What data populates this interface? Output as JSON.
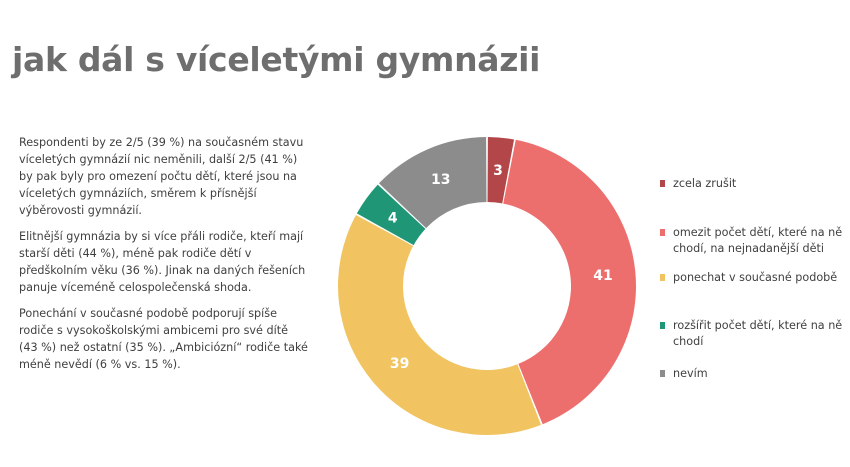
{
  "title": "jak dál s víceletými gymnázii",
  "paragraphs": [
    "Respondenti by ze 2/5 (39 %) na současném stavu víceletých gymnázií nic neměnili, další 2/5 (41 %) by pak byly pro omezení počtu dětí, které jsou na víceletých gymnáziích, směrem k přísnější výběrovosti gymnázií.",
    "Elitnější gymnázia by si více přáli rodiče, kteří mají starší děti (44 %), méně pak rodiče dětí v předškolním věku (36 %). Jinak na daných řešeních panuje víceméně celospolečenská shoda.",
    "Ponechání v současné podobě podporují spíše rodiče s vysokoškolskými ambicemi pro své dítě (43 %) než ostatní (35 %). „Ambiciózní“ rodiče také méně nevědí (6 % vs. 15 %)."
  ],
  "chart_data": {
    "type": "pie",
    "donut": true,
    "title": "",
    "categories": [
      "zcela zrušit",
      "omezit počet dětí, které na ně chodí, na nejnadanější děti",
      "ponechat v současné podobě",
      "rozšířit počet dětí, které na ně chodí",
      "nevím"
    ],
    "values": [
      3,
      41,
      39,
      4,
      13
    ],
    "data_labels": [
      "3",
      "41",
      "39",
      "4",
      "13"
    ],
    "colors": [
      "#b34649",
      "#ec6f6e",
      "#f1c461",
      "#1f9777",
      "#8c8c8c"
    ],
    "legend_position": "right"
  }
}
